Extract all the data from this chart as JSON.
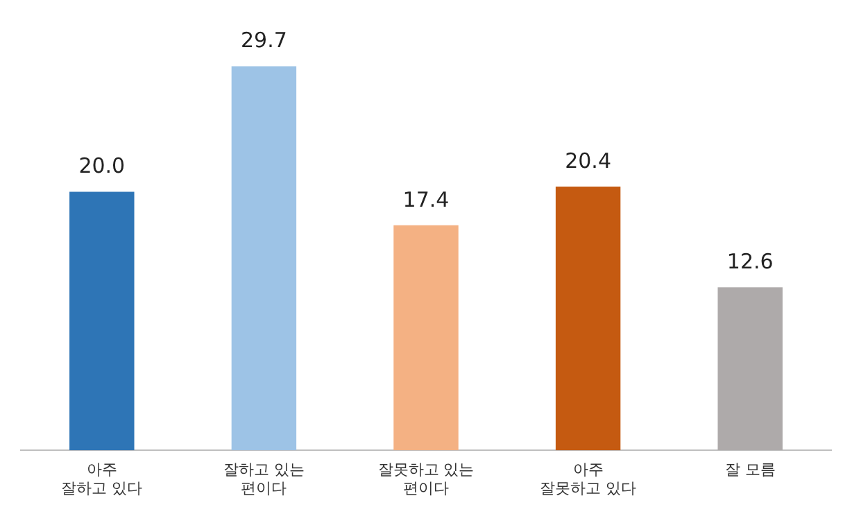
{
  "chart_data": {
    "type": "bar",
    "categories": [
      "아주\n잘하고 있다",
      "잘하고 있는\n편이다",
      "잘못하고 있는\n편이다",
      "아주\n잘못하고 있다",
      "잘 모름"
    ],
    "values": [
      20.0,
      29.7,
      17.4,
      20.4,
      12.6
    ],
    "colors": [
      "#2e75b6",
      "#9dc3e6",
      "#f4b183",
      "#c55a11",
      "#aeaaaa"
    ],
    "value_labels": [
      "20.0",
      "29.7",
      "17.4",
      "20.4",
      "12.6"
    ]
  }
}
